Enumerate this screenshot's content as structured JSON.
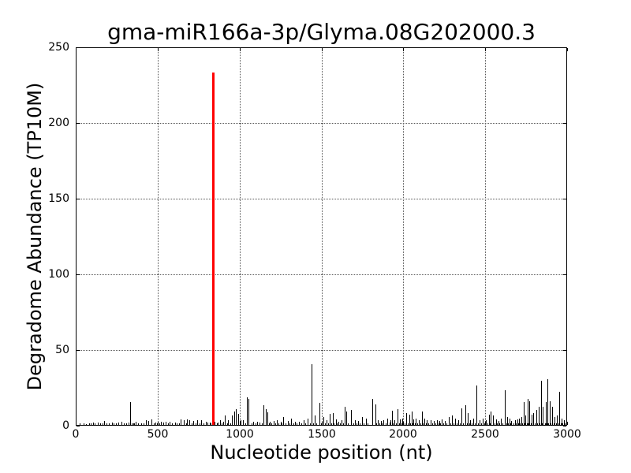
{
  "chart_data": {
    "type": "bar",
    "title": "gma-miR166a-3p/Glyma.08G202000.3",
    "xlabel": "Nucleotide position (nt)",
    "ylabel": "Degradome Abundance (TP10M)",
    "xlim": [
      0,
      3000
    ],
    "ylim": [
      0,
      250
    ],
    "xticks": [
      0,
      500,
      1000,
      1500,
      2000,
      2500,
      3000
    ],
    "yticks": [
      0,
      50,
      100,
      150,
      200,
      250
    ],
    "grid": {
      "visible": true,
      "style": "dotted",
      "color": "#555555"
    },
    "legend": "none",
    "colors": {
      "background": "#ffffff",
      "axis": "#000000",
      "spike": "#000000",
      "highlight": "#ff0000"
    },
    "highlight_spike": {
      "x": 832,
      "y": 233
    },
    "spikes": [
      [
        101,
        1.5
      ],
      [
        130,
        1.5
      ],
      [
        169,
        2.5
      ],
      [
        183,
        1.2
      ],
      [
        215,
        1.5
      ],
      [
        256,
        1.5
      ],
      [
        275,
        2
      ],
      [
        328,
        15
      ],
      [
        345,
        1.2
      ],
      [
        362,
        2
      ],
      [
        425,
        3
      ],
      [
        440,
        2.5
      ],
      [
        458,
        3.5
      ],
      [
        480,
        1.5
      ],
      [
        516,
        2
      ],
      [
        530,
        1.5
      ],
      [
        545,
        2
      ],
      [
        570,
        2
      ],
      [
        600,
        1.5
      ],
      [
        637,
        3.5
      ],
      [
        655,
        3
      ],
      [
        676,
        3.5
      ],
      [
        690,
        3
      ],
      [
        715,
        2.5
      ],
      [
        738,
        3
      ],
      [
        762,
        3
      ],
      [
        790,
        2
      ],
      [
        812,
        1.5
      ],
      [
        845,
        2
      ],
      [
        862,
        1.5
      ],
      [
        878,
        3
      ],
      [
        896,
        2
      ],
      [
        905,
        6
      ],
      [
        925,
        3
      ],
      [
        950,
        6
      ],
      [
        964,
        9
      ],
      [
        974,
        10.5
      ],
      [
        988,
        7.5
      ],
      [
        1003,
        3
      ],
      [
        1018,
        3
      ],
      [
        1042,
        18
      ],
      [
        1052,
        17
      ],
      [
        1080,
        2
      ],
      [
        1104,
        2
      ],
      [
        1143,
        13
      ],
      [
        1157,
        10.5
      ],
      [
        1167,
        8.5
      ],
      [
        1180,
        2
      ],
      [
        1205,
        2.5
      ],
      [
        1225,
        3
      ],
      [
        1245,
        2
      ],
      [
        1264,
        5
      ],
      [
        1290,
        2.5
      ],
      [
        1312,
        4
      ],
      [
        1335,
        2
      ],
      [
        1360,
        2
      ],
      [
        1385,
        3
      ],
      [
        1412,
        4
      ],
      [
        1437,
        40
      ],
      [
        1452,
        6
      ],
      [
        1481,
        14.5
      ],
      [
        1505,
        5
      ],
      [
        1527,
        3
      ],
      [
        1548,
        7.5
      ],
      [
        1563,
        8
      ],
      [
        1582,
        3.5
      ],
      [
        1600,
        2
      ],
      [
        1618,
        3
      ],
      [
        1635,
        12
      ],
      [
        1648,
        9
      ],
      [
        1674,
        10
      ],
      [
        1700,
        3
      ],
      [
        1720,
        2.5
      ],
      [
        1741,
        5
      ],
      [
        1765,
        4
      ],
      [
        1804,
        17
      ],
      [
        1823,
        13.5
      ],
      [
        1840,
        3
      ],
      [
        1858,
        2.5
      ],
      [
        1872,
        3
      ],
      [
        1896,
        4
      ],
      [
        1915,
        3
      ],
      [
        1925,
        9.5
      ],
      [
        1940,
        3
      ],
      [
        1958,
        10.5
      ],
      [
        1975,
        3.5
      ],
      [
        1990,
        4
      ],
      [
        2012,
        8
      ],
      [
        2030,
        7
      ],
      [
        2045,
        9
      ],
      [
        2058,
        3.5
      ],
      [
        2070,
        4
      ],
      [
        2090,
        3
      ],
      [
        2108,
        9
      ],
      [
        2122,
        4
      ],
      [
        2140,
        3
      ],
      [
        2160,
        3
      ],
      [
        2180,
        2.5
      ],
      [
        2200,
        3
      ],
      [
        2215,
        2.5
      ],
      [
        2230,
        3.5
      ],
      [
        2250,
        2.5
      ],
      [
        2272,
        5
      ],
      [
        2290,
        6.5
      ],
      [
        2310,
        4
      ],
      [
        2330,
        3
      ],
      [
        2349,
        11
      ],
      [
        2373,
        13
      ],
      [
        2388,
        8
      ],
      [
        2405,
        3
      ],
      [
        2420,
        4
      ],
      [
        2441,
        26
      ],
      [
        2460,
        3
      ],
      [
        2480,
        4
      ],
      [
        2500,
        3
      ],
      [
        2518,
        7
      ],
      [
        2530,
        9
      ],
      [
        2541,
        6
      ],
      [
        2560,
        3.5
      ],
      [
        2576,
        2.5
      ],
      [
        2590,
        4
      ],
      [
        2614,
        23
      ],
      [
        2629,
        5
      ],
      [
        2642,
        4
      ],
      [
        2653,
        2.5
      ],
      [
        2677,
        3
      ],
      [
        2690,
        3.5
      ],
      [
        2702,
        4
      ],
      [
        2714,
        5
      ],
      [
        2730,
        15
      ],
      [
        2742,
        6
      ],
      [
        2754,
        17
      ],
      [
        2766,
        15.5
      ],
      [
        2778,
        7
      ],
      [
        2790,
        8
      ],
      [
        2807,
        10
      ],
      [
        2820,
        12
      ],
      [
        2836,
        29
      ],
      [
        2848,
        12
      ],
      [
        2865,
        15
      ],
      [
        2875,
        30
      ],
      [
        2889,
        15.5
      ],
      [
        2904,
        12
      ],
      [
        2920,
        5
      ],
      [
        2933,
        6
      ],
      [
        2947,
        22
      ],
      [
        2962,
        4
      ],
      [
        2975,
        3
      ],
      [
        2988,
        2
      ]
    ],
    "baseline_noise": [
      [
        20,
        0.8
      ],
      [
        45,
        1
      ],
      [
        60,
        0.7
      ],
      [
        75,
        1.2
      ],
      [
        88,
        0.8
      ],
      [
        112,
        1
      ],
      [
        145,
        1.3
      ],
      [
        158,
        0.9
      ],
      [
        196,
        1.1
      ],
      [
        228,
        0.8
      ],
      [
        240,
        1.2
      ],
      [
        290,
        1
      ],
      [
        305,
        0.8
      ],
      [
        318,
        1.4
      ],
      [
        338,
        0.9
      ],
      [
        352,
        1.1
      ],
      [
        378,
        0.8
      ],
      [
        395,
        1.3
      ],
      [
        410,
        0.9
      ],
      [
        470,
        1
      ],
      [
        492,
        0.8
      ],
      [
        505,
        1.2
      ],
      [
        558,
        0.9
      ],
      [
        585,
        1.1
      ],
      [
        612,
        0.8
      ],
      [
        625,
        1.3
      ],
      [
        668,
        0.9
      ],
      [
        702,
        1.1
      ],
      [
        726,
        0.8
      ],
      [
        750,
        1.2
      ],
      [
        775,
        0.9
      ],
      [
        800,
        1.4
      ],
      [
        820,
        1
      ],
      [
        855,
        0.9
      ],
      [
        888,
        1.2
      ],
      [
        922,
        1
      ],
      [
        938,
        1.3
      ],
      [
        996,
        1.1
      ],
      [
        1030,
        0.9
      ],
      [
        1068,
        1.2
      ],
      [
        1092,
        0.8
      ],
      [
        1115,
        1.4
      ],
      [
        1130,
        1
      ],
      [
        1175,
        1.1
      ],
      [
        1190,
        0.9
      ],
      [
        1215,
        1.2
      ],
      [
        1235,
        0.8
      ],
      [
        1252,
        1.3
      ],
      [
        1275,
        1
      ],
      [
        1300,
        0.9
      ],
      [
        1322,
        1.1
      ],
      [
        1345,
        0.8
      ],
      [
        1370,
        1.2
      ],
      [
        1398,
        0.9
      ],
      [
        1425,
        1
      ],
      [
        1445,
        1.3
      ],
      [
        1465,
        0.9
      ],
      [
        1492,
        1.1
      ],
      [
        1515,
        0.8
      ],
      [
        1535,
        1.2
      ],
      [
        1555,
        1
      ],
      [
        1572,
        0.9
      ],
      [
        1590,
        1.3
      ],
      [
        1608,
        1
      ],
      [
        1628,
        0.8
      ],
      [
        1658,
        1.1
      ],
      [
        1688,
        0.9
      ],
      [
        1710,
        1.2
      ],
      [
        1730,
        1
      ],
      [
        1752,
        0.8
      ],
      [
        1778,
        1.3
      ],
      [
        1830,
        1.1
      ],
      [
        1848,
        1
      ],
      [
        1865,
        1.2
      ],
      [
        1888,
        0.9
      ],
      [
        1912,
        1.4
      ],
      [
        1932,
        1.1
      ],
      [
        1948,
        0.9
      ],
      [
        1968,
        1.2
      ],
      [
        1982,
        1
      ],
      [
        2002,
        1.3
      ],
      [
        2022,
        0.9
      ],
      [
        2038,
        1.1
      ],
      [
        2052,
        1
      ],
      [
        2065,
        0.8
      ],
      [
        2080,
        1.2
      ],
      [
        2098,
        1
      ],
      [
        2115,
        0.9
      ],
      [
        2132,
        1.3
      ],
      [
        2150,
        1.1
      ],
      [
        2170,
        0.9
      ],
      [
        2190,
        1.2
      ],
      [
        2208,
        1
      ],
      [
        2222,
        0.8
      ],
      [
        2240,
        1.1
      ],
      [
        2260,
        0.9
      ],
      [
        2282,
        1.2
      ],
      [
        2300,
        1
      ],
      [
        2320,
        0.8
      ],
      [
        2340,
        1.3
      ],
      [
        2360,
        1
      ],
      [
        2382,
        0.9
      ],
      [
        2398,
        1.1
      ],
      [
        2412,
        1
      ],
      [
        2430,
        1.2
      ],
      [
        2452,
        0.9
      ],
      [
        2470,
        1.1
      ],
      [
        2490,
        1
      ],
      [
        2508,
        0.8
      ],
      [
        2524,
        1.2
      ],
      [
        2550,
        1
      ],
      [
        2568,
        0.9
      ],
      [
        2582,
        1.1
      ],
      [
        2600,
        1.3
      ],
      [
        2622,
        1
      ],
      [
        2636,
        0.9
      ],
      [
        2650,
        1.2
      ],
      [
        2668,
        1
      ],
      [
        2682,
        0.8
      ],
      [
        2696,
        1.1
      ],
      [
        2708,
        1.3
      ],
      [
        2722,
        1
      ],
      [
        2736,
        0.9
      ],
      [
        2748,
        1.2
      ],
      [
        2760,
        1
      ],
      [
        2774,
        1.1
      ],
      [
        2796,
        0.9
      ],
      [
        2814,
        1.3
      ],
      [
        2828,
        1
      ],
      [
        2842,
        1.2
      ],
      [
        2858,
        0.9
      ],
      [
        2870,
        1.1
      ],
      [
        2882,
        1
      ],
      [
        2896,
        1.2
      ],
      [
        2912,
        0.9
      ],
      [
        2926,
        1.1
      ],
      [
        2940,
        1
      ],
      [
        2955,
        1.2
      ],
      [
        2968,
        0.9
      ],
      [
        2980,
        1.1
      ],
      [
        2995,
        0.8
      ]
    ]
  }
}
